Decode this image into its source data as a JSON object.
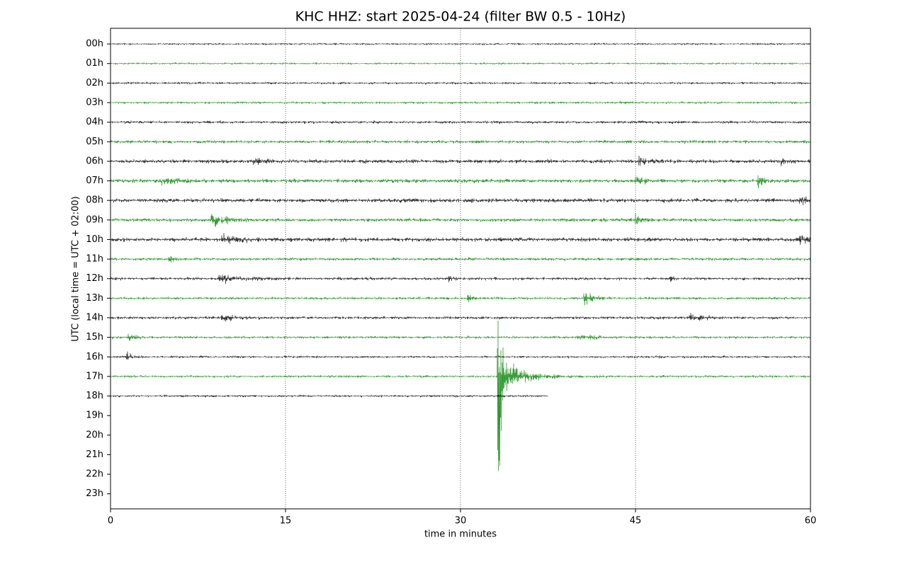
{
  "chart_data": {
    "type": "helicorder",
    "title": "KHC HHZ: start 2025-04-24 (filter BW 0.5 - 10Hz)",
    "xlabel": "time in minutes",
    "ylabel": "UTC (local time = UTC + 02:00)",
    "xlim": [
      0,
      60
    ],
    "xticks": [
      0,
      15,
      30,
      45,
      60
    ],
    "ylim": [
      -0.8,
      23.77
    ],
    "yticks": [
      {
        "value": 0,
        "label": "00h"
      },
      {
        "value": 1,
        "label": "01h"
      },
      {
        "value": 2,
        "label": "02h"
      },
      {
        "value": 3,
        "label": "03h"
      },
      {
        "value": 4,
        "label": "04h"
      },
      {
        "value": 5,
        "label": "05h"
      },
      {
        "value": 6,
        "label": "06h"
      },
      {
        "value": 7,
        "label": "07h"
      },
      {
        "value": 8,
        "label": "08h"
      },
      {
        "value": 9,
        "label": "09h"
      },
      {
        "value": 10,
        "label": "10h"
      },
      {
        "value": 11,
        "label": "11h"
      },
      {
        "value": 12,
        "label": "12h"
      },
      {
        "value": 13,
        "label": "13h"
      },
      {
        "value": 14,
        "label": "14h"
      },
      {
        "value": 15,
        "label": "15h"
      },
      {
        "value": 16,
        "label": "16h"
      },
      {
        "value": 17,
        "label": "17h"
      },
      {
        "value": 18,
        "label": "18h"
      },
      {
        "value": 19,
        "label": "19h"
      },
      {
        "value": 20,
        "label": "20h"
      },
      {
        "value": 21,
        "label": "21h"
      },
      {
        "value": 22,
        "label": "22h"
      },
      {
        "value": 23,
        "label": "23h"
      }
    ],
    "grid": true,
    "series": [
      {
        "color": "#000000",
        "noise": 0.07,
        "events": []
      },
      {
        "color": "#008000",
        "noise": 0.07,
        "events": []
      },
      {
        "color": "#000000",
        "noise": 0.08,
        "events": []
      },
      {
        "color": "#008000",
        "noise": 0.08,
        "events": []
      },
      {
        "color": "#000000",
        "noise": 0.1,
        "events": []
      },
      {
        "color": "#008000",
        "noise": 0.11,
        "events": []
      },
      {
        "color": "#000000",
        "noise": 0.13,
        "events": [
          [
            12.2,
            0.2,
            0.8
          ],
          [
            45.3,
            0.35,
            0.6
          ],
          [
            57.5,
            0.3,
            0.4
          ]
        ]
      },
      {
        "color": "#008000",
        "noise": 0.13,
        "events": [
          [
            4.3,
            0.2,
            1.5
          ],
          [
            45,
            0.35,
            0.6
          ],
          [
            55.5,
            0.6,
            0.3
          ]
        ]
      },
      {
        "color": "#000000",
        "noise": 0.14,
        "events": [
          [
            59,
            0.3,
            0.6
          ]
        ]
      },
      {
        "color": "#008000",
        "noise": 0.12,
        "events": [
          [
            8.6,
            0.6,
            1.2
          ],
          [
            45,
            0.4,
            0.5
          ]
        ]
      },
      {
        "color": "#000000",
        "noise": 0.14,
        "events": [
          [
            9.5,
            0.3,
            1.5
          ],
          [
            59,
            0.35,
            0.6
          ]
        ]
      },
      {
        "color": "#008000",
        "noise": 0.1,
        "events": [
          [
            5,
            0.3,
            0.3
          ]
        ]
      },
      {
        "color": "#000000",
        "noise": 0.1,
        "events": [
          [
            9.3,
            0.35,
            1.2
          ],
          [
            29,
            0.3,
            0.2
          ],
          [
            48,
            0.3,
            0.2
          ]
        ]
      },
      {
        "color": "#008000",
        "noise": 0.09,
        "events": [
          [
            30.6,
            0.4,
            0.3
          ],
          [
            40.6,
            0.6,
            0.6
          ]
        ]
      },
      {
        "color": "#000000",
        "noise": 0.1,
        "events": [
          [
            9.5,
            0.2,
            1
          ],
          [
            49.5,
            0.3,
            1.2
          ]
        ]
      },
      {
        "color": "#008000",
        "noise": 0.09,
        "events": [
          [
            1.5,
            0.25,
            0.6
          ],
          [
            40,
            0.15,
            1.5
          ]
        ]
      },
      {
        "color": "#000000",
        "noise": 0.08,
        "events": [
          [
            1.4,
            0.35,
            0.4
          ]
        ]
      },
      {
        "color": "#008000",
        "noise": 0.08,
        "events": [
          [
            33.2,
            25,
            0.15
          ],
          [
            33.2,
            1.5,
            1.6
          ]
        ]
      },
      {
        "color": "#000000",
        "noise": 0.08,
        "end": 37.5,
        "events": []
      }
    ]
  }
}
